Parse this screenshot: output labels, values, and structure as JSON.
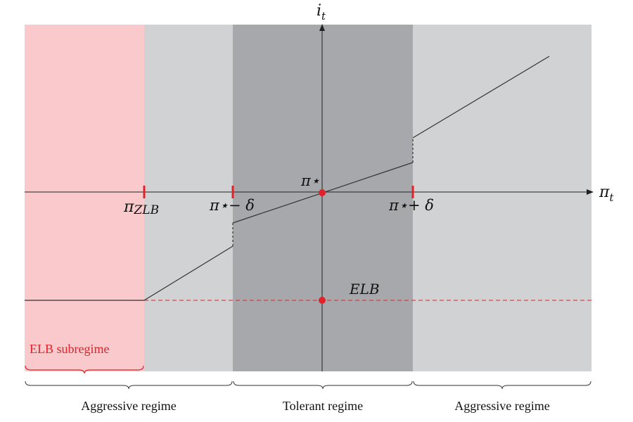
{
  "axes": {
    "x_label": "π",
    "x_sub": "t",
    "y_label": "i",
    "y_sub": "t"
  },
  "ticks": {
    "zlb_main": "π",
    "zlb_sub": "ZLB",
    "left_band": "π⋆− δ",
    "right_band": "π⋆+ δ",
    "target": "π⋆"
  },
  "annotations": {
    "elb": "ELB",
    "elb_subregime": "ELB subregime"
  },
  "regimes": [
    "Aggressive regime",
    "Tolerant regime",
    "Aggressive regime"
  ],
  "colors": {
    "elb_region": "#f9c9cb",
    "aggressive_region": "#d1d2d4",
    "tolerant_region": "#a7a8ab",
    "marker_red": "#e0232a",
    "line": "#333333"
  }
}
